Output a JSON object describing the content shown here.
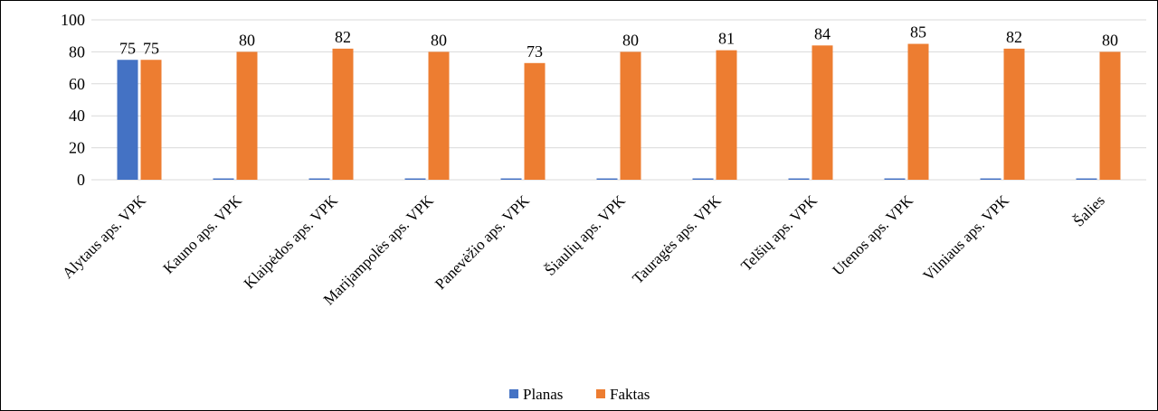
{
  "chart_data": {
    "type": "bar",
    "title": "",
    "xlabel": "",
    "ylabel": "",
    "ylim": [
      0,
      100
    ],
    "yticks": [
      0,
      20,
      40,
      60,
      80,
      100
    ],
    "ytick_labels": [
      "0",
      "20",
      "40",
      "60",
      "80",
      "100"
    ],
    "grid": true,
    "legend_position": "bottom",
    "categories": [
      "Alytaus aps. VPK",
      "Kauno aps. VPK",
      "Klaipėdos aps. VPK",
      "Marijampolės aps. VPK",
      "Panevėžio aps. VPK",
      "Šiaulių aps. VPK",
      "Tauragės aps. VPK",
      "Telšių aps. VPK",
      "Utenos aps. VPK",
      "Vilniaus aps. VPK",
      "Šalies"
    ],
    "series": [
      {
        "name": "Planas",
        "color": "#4472c4",
        "values": [
          75,
          0,
          0,
          0,
          0,
          0,
          0,
          0,
          0,
          0,
          0
        ],
        "data_labels": [
          "75",
          "",
          "",
          "",
          "",
          "",
          "",
          "",
          "",
          "",
          ""
        ]
      },
      {
        "name": "Faktas",
        "color": "#ed7d31",
        "values": [
          75,
          80,
          82,
          80,
          73,
          80,
          81,
          84,
          85,
          82,
          80
        ],
        "data_labels": [
          "75",
          "80",
          "82",
          "80",
          "73",
          "80",
          "81",
          "84",
          "85",
          "82",
          "80"
        ]
      }
    ]
  }
}
